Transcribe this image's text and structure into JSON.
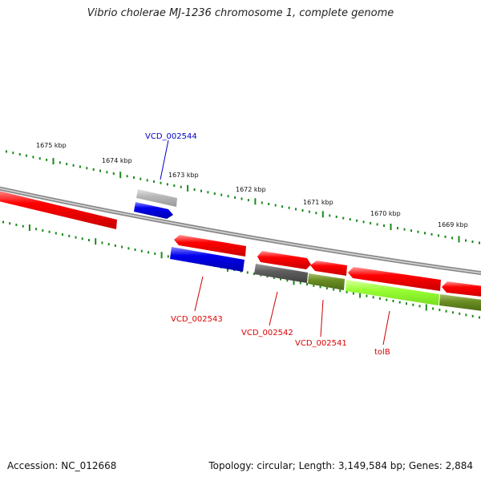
{
  "title": "Vibrio cholerae MJ-1236 chromosome 1, complete genome",
  "footer": {
    "accession": "Accession: NC_012668",
    "topology": "Topology: circular; Length: 3,149,584 bp; Genes: 2,884"
  },
  "colors": {
    "backbone": "#8a8a8a",
    "ticks": "#1a8a1a",
    "gene_red": "#ff0000",
    "gene_blue": "#0000ee",
    "gene_gray_light": "#b0b0b0",
    "gene_gray_dark": "#555555",
    "gene_olive": "#6b8e23",
    "gene_lime": "#99ff33",
    "label_red": "#dd0000",
    "label_blue": "#0000cc"
  },
  "scale_labels": [
    "1675 kbp",
    "1674 kbp",
    "1673 kbp",
    "1672 kbp",
    "1671 kbp",
    "1670 kbp",
    "1669 kbp"
  ],
  "gene_labels": {
    "VCD_002544": "VCD_002544",
    "VCD_002543": "VCD_002543",
    "VCD_002542": "VCD_002542",
    "VCD_002541": "VCD_002541",
    "tolB": "tolB"
  }
}
